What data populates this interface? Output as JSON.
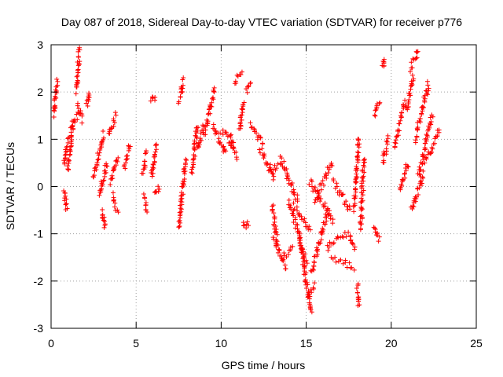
{
  "chart_data": {
    "type": "scatter",
    "title": "Day 087 of 2018, Sidereal Day-to-day VTEC variation (SDTVAR) for receiver p776",
    "xlabel": "GPS time / hours",
    "ylabel": "SDTVAR / TECUs",
    "xlim": [
      0,
      25
    ],
    "ylim": [
      -3,
      3
    ],
    "xticks": [
      0,
      5,
      10,
      15,
      20,
      25
    ],
    "yticks": [
      -3,
      -2,
      -1,
      0,
      1,
      2,
      3
    ],
    "xtick_labels": [
      "0",
      "5",
      "10",
      "15",
      "20",
      "25"
    ],
    "ytick_labels": [
      "-3",
      "-2",
      "-1",
      "0",
      "1",
      "2",
      "3"
    ],
    "grid": true,
    "marker": "+",
    "color": "#ff0000",
    "segments": [
      {
        "x": [
          0.15,
          0.35
        ],
        "y": [
          1.5,
          2.25
        ]
      },
      {
        "x": [
          0.75,
          1.0
        ],
        "y": [
          0.5,
          1.0
        ]
      },
      {
        "x": [
          0.8,
          0.9
        ],
        "y": [
          -0.1,
          -0.5
        ]
      },
      {
        "x": [
          1.0,
          1.3
        ],
        "y": [
          0.3,
          1.4
        ]
      },
      {
        "x": [
          1.2,
          1.6
        ],
        "y": [
          1.3,
          1.5
        ]
      },
      {
        "x": [
          1.5,
          1.65
        ],
        "y": [
          2.0,
          2.9
        ]
      },
      {
        "x": [
          1.55,
          1.85
        ],
        "y": [
          1.7,
          1.4
        ]
      },
      {
        "x": [
          2.1,
          2.25
        ],
        "y": [
          1.7,
          2.0
        ]
      },
      {
        "x": [
          2.5,
          3.1
        ],
        "y": [
          0.2,
          1.1
        ]
      },
      {
        "x": [
          2.8,
          3.3
        ],
        "y": [
          -0.2,
          0.5
        ]
      },
      {
        "x": [
          3.0,
          3.2
        ],
        "y": [
          -0.5,
          -0.85
        ]
      },
      {
        "x": [
          3.4,
          3.8
        ],
        "y": [
          1.1,
          1.5
        ]
      },
      {
        "x": [
          3.5,
          3.9
        ],
        "y": [
          0.1,
          0.6
        ]
      },
      {
        "x": [
          3.6,
          3.9
        ],
        "y": [
          -0.2,
          -0.5
        ]
      },
      {
        "x": [
          4.3,
          4.6
        ],
        "y": [
          0.4,
          0.9
        ]
      },
      {
        "x": [
          5.4,
          5.6
        ],
        "y": [
          0.3,
          0.7
        ]
      },
      {
        "x": [
          5.5,
          5.6
        ],
        "y": [
          -0.2,
          -0.5
        ]
      },
      {
        "x": [
          5.9,
          6.1
        ],
        "y": [
          1.8,
          1.9
        ]
      },
      {
        "x": [
          5.9,
          6.2
        ],
        "y": [
          0.2,
          0.9
        ]
      },
      {
        "x": [
          6.1,
          6.3
        ],
        "y": [
          -0.2,
          0.0
        ]
      },
      {
        "x": [
          7.5,
          7.9
        ],
        "y": [
          -0.9,
          0.6
        ]
      },
      {
        "x": [
          7.5,
          7.8
        ],
        "y": [
          1.8,
          2.25
        ]
      },
      {
        "x": [
          8.3,
          8.6
        ],
        "y": [
          0.3,
          1.3
        ]
      },
      {
        "x": [
          8.6,
          9.0
        ],
        "y": [
          0.8,
          1.3
        ]
      },
      {
        "x": [
          9.0,
          9.6
        ],
        "y": [
          1.1,
          2.05
        ]
      },
      {
        "x": [
          9.5,
          10.3
        ],
        "y": [
          1.3,
          0.7
        ]
      },
      {
        "x": [
          10.0,
          10.6
        ],
        "y": [
          1.2,
          0.9
        ]
      },
      {
        "x": [
          10.5,
          10.9
        ],
        "y": [
          1.1,
          0.6
        ]
      },
      {
        "x": [
          10.8,
          11.2
        ],
        "y": [
          2.2,
          2.4
        ]
      },
      {
        "x": [
          11.1,
          11.3
        ],
        "y": [
          1.2,
          1.8
        ]
      },
      {
        "x": [
          11.5,
          11.7
        ],
        "y": [
          2.0,
          2.2
        ]
      },
      {
        "x": [
          11.3,
          11.6
        ],
        "y": [
          -0.8,
          -0.8
        ]
      },
      {
        "x": [
          11.7,
          12.5
        ],
        "y": [
          1.3,
          0.9
        ]
      },
      {
        "x": [
          12.3,
          13.1
        ],
        "y": [
          0.8,
          0.2
        ]
      },
      {
        "x": [
          12.8,
          13.5
        ],
        "y": [
          0.3,
          0.5
        ]
      },
      {
        "x": [
          13.0,
          13.3
        ],
        "y": [
          -0.4,
          -1.2
        ]
      },
      {
        "x": [
          13.1,
          13.8
        ],
        "y": [
          -1.1,
          -1.7
        ]
      },
      {
        "x": [
          13.6,
          14.2
        ],
        "y": [
          -1.5,
          -1.3
        ]
      },
      {
        "x": [
          13.5,
          14.5
        ],
        "y": [
          0.6,
          -0.3
        ]
      },
      {
        "x": [
          14.0,
          15.0
        ],
        "y": [
          -0.3,
          -1.6
        ]
      },
      {
        "x": [
          14.3,
          15.2
        ],
        "y": [
          -0.4,
          -0.9
        ]
      },
      {
        "x": [
          14.6,
          15.3
        ],
        "y": [
          -1.1,
          -2.7
        ]
      },
      {
        "x": [
          15.1,
          15.5
        ],
        "y": [
          -2.3,
          -2.1
        ]
      },
      {
        "x": [
          15.3,
          16.3
        ],
        "y": [
          -1.8,
          -0.5
        ]
      },
      {
        "x": [
          15.5,
          16.5
        ],
        "y": [
          -0.3,
          0.5
        ]
      },
      {
        "x": [
          15.2,
          16.6
        ],
        "y": [
          0.1,
          -0.7
        ]
      },
      {
        "x": [
          16.2,
          17.3
        ],
        "y": [
          -1.3,
          -1.0
        ]
      },
      {
        "x": [
          16.5,
          17.8
        ],
        "y": [
          -1.5,
          -1.7
        ]
      },
      {
        "x": [
          16.6,
          17.6
        ],
        "y": [
          0.1,
          -0.5
        ]
      },
      {
        "x": [
          17.5,
          17.9
        ],
        "y": [
          -1.0,
          -1.3
        ]
      },
      {
        "x": [
          17.8,
          18.1
        ],
        "y": [
          -0.5,
          1.0
        ]
      },
      {
        "x": [
          18.0,
          18.1
        ],
        "y": [
          -2.1,
          -2.5
        ]
      },
      {
        "x": [
          18.2,
          18.4
        ],
        "y": [
          -0.9,
          0.6
        ]
      },
      {
        "x": [
          19.0,
          19.3
        ],
        "y": [
          1.5,
          1.8
        ]
      },
      {
        "x": [
          19.0,
          19.3
        ],
        "y": [
          -0.8,
          -1.1
        ]
      },
      {
        "x": [
          19.5,
          19.6
        ],
        "y": [
          2.6,
          2.65
        ]
      },
      {
        "x": [
          19.5,
          19.8
        ],
        "y": [
          0.5,
          1.0
        ]
      },
      {
        "x": [
          20.2,
          20.8
        ],
        "y": [
          0.8,
          1.8
        ]
      },
      {
        "x": [
          20.5,
          21.0
        ],
        "y": [
          -0.1,
          0.5
        ]
      },
      {
        "x": [
          20.9,
          21.3
        ],
        "y": [
          1.6,
          2.3
        ]
      },
      {
        "x": [
          21.1,
          21.6
        ],
        "y": [
          2.5,
          2.85
        ]
      },
      {
        "x": [
          21.2,
          21.9
        ],
        "y": [
          -0.5,
          0.3
        ]
      },
      {
        "x": [
          21.4,
          22.2
        ],
        "y": [
          1.0,
          2.2
        ]
      },
      {
        "x": [
          21.6,
          22.4
        ],
        "y": [
          0.2,
          1.5
        ]
      },
      {
        "x": [
          22.0,
          22.8
        ],
        "y": [
          0.5,
          1.2
        ]
      }
    ]
  }
}
